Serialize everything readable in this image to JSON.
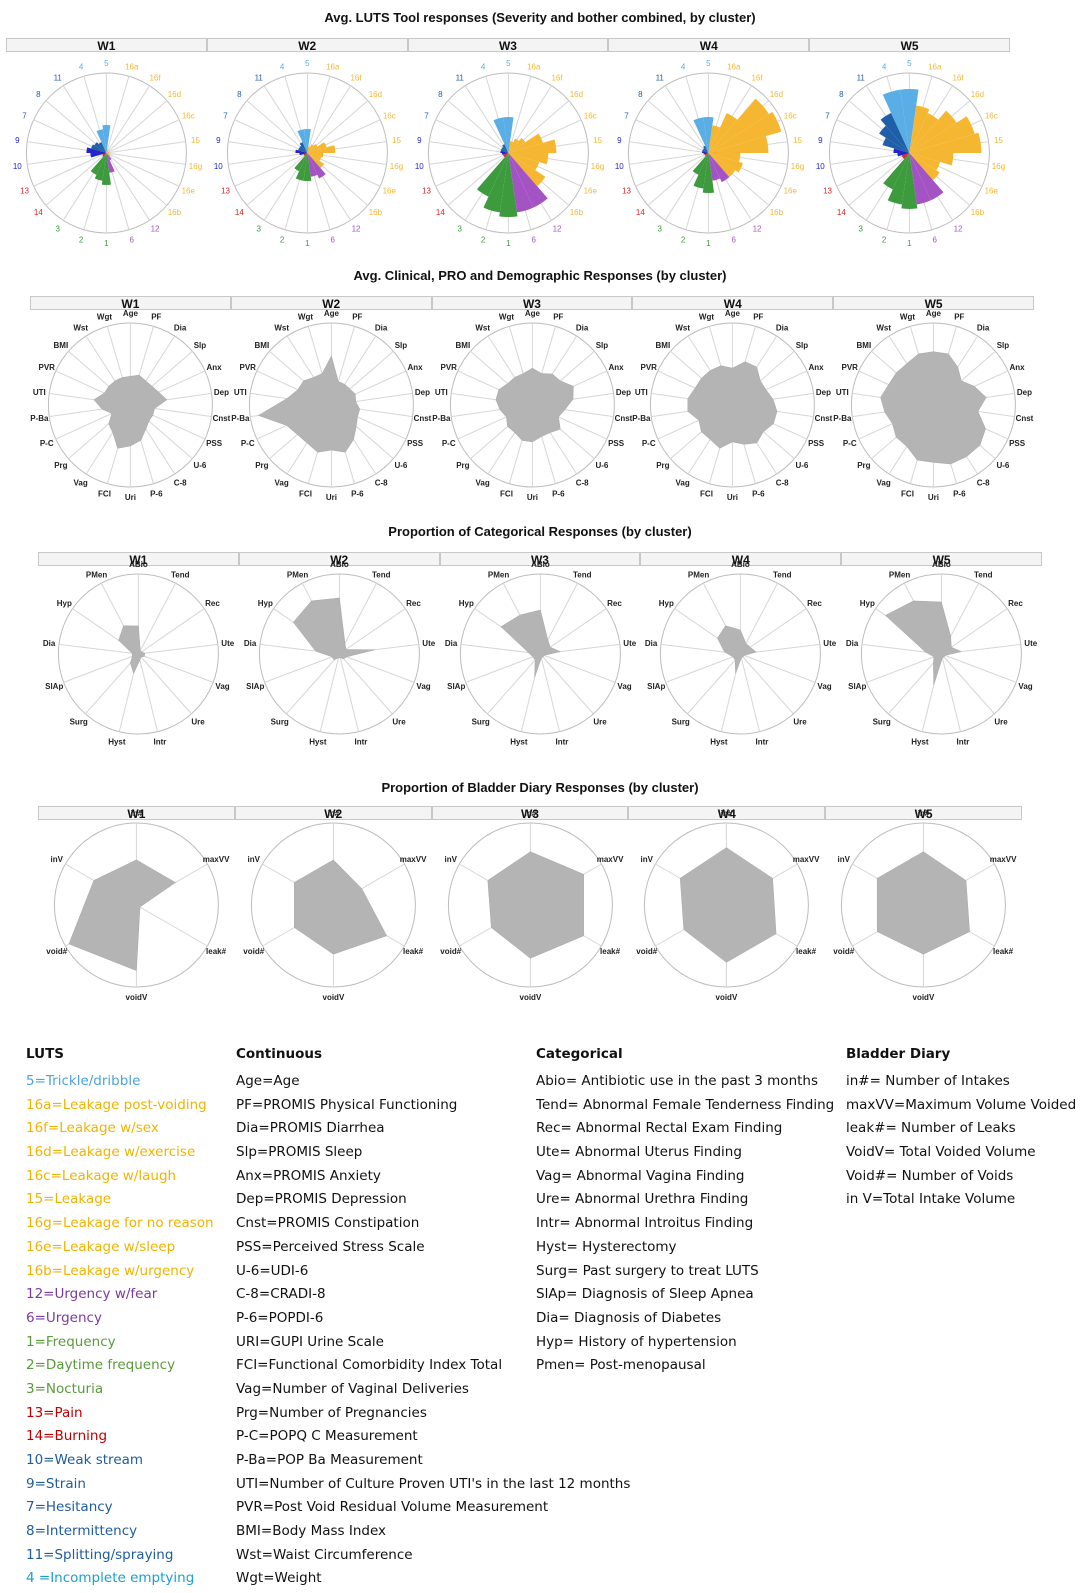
{
  "colors": {
    "light_blue": "#5aaee6",
    "orange": "#f5b731",
    "purple": "#a453c4",
    "green": "#3d9a3d",
    "red": "#e02121",
    "blue": "#2424cc",
    "dark_blue": "#1f5fa8",
    "gray_fill": "#b4b4b4",
    "legend_light_blue": "#4aa3df",
    "legend_orange": "#f0b400",
    "legend_purple": "#7b3aa0",
    "legend_green": "#5a9a3a",
    "legend_red": "#c00000",
    "legend_blue": "#1f5c99",
    "legend_cyan": "#1aa0d0"
  },
  "sections": {
    "luts_title": "Avg. LUTS Tool responses (Severity and bother combined, by cluster)",
    "clin_title": "Avg. Clinical, PRO and Demographic Responses (by cluster)",
    "cat_title": "Proportion of Categorical Responses (by cluster)",
    "diary_title": "Proportion of Bladder Diary Responses (by cluster)"
  },
  "clusters": [
    "W1",
    "W2",
    "W3",
    "W4",
    "W5"
  ],
  "chart_data": [
    {
      "type": "radar",
      "title": "Avg. LUTS Tool responses (Severity and bother combined, by cluster)",
      "axes": [
        "5",
        "16a",
        "16f",
        "16d",
        "16c",
        "15",
        "16g",
        "16e",
        "16b",
        "12",
        "6",
        "1",
        "2",
        "3",
        "14",
        "13",
        "10",
        "9",
        "7",
        "8",
        "11",
        "4"
      ],
      "axis_colors": [
        "light_blue",
        "orange",
        "orange",
        "orange",
        "orange",
        "orange",
        "orange",
        "orange",
        "orange",
        "purple",
        "purple",
        "green",
        "green",
        "green",
        "red",
        "red",
        "blue",
        "blue",
        "dark_blue",
        "dark_blue",
        "dark_blue",
        "light_blue"
      ],
      "rmax": 1,
      "series": [
        {
          "values": [
            0.35,
            0.05,
            0.03,
            0.03,
            0.03,
            0.03,
            0.03,
            0.04,
            0.06,
            0.1,
            0.25,
            0.4,
            0.35,
            0.3,
            0.06,
            0.05,
            0.2,
            0.25,
            0.2,
            0.18,
            0.15,
            0.3
          ]
        },
        {
          "values": [
            0.3,
            0.08,
            0.12,
            0.15,
            0.25,
            0.35,
            0.2,
            0.18,
            0.25,
            0.35,
            0.3,
            0.35,
            0.35,
            0.25,
            0.05,
            0.05,
            0.1,
            0.15,
            0.12,
            0.12,
            0.15,
            0.3
          ]
        },
        {
          "values": [
            0.45,
            0.15,
            0.2,
            0.25,
            0.45,
            0.6,
            0.5,
            0.4,
            0.55,
            0.75,
            0.75,
            0.8,
            0.75,
            0.6,
            0.07,
            0.07,
            0.08,
            0.1,
            0.1,
            0.1,
            0.12,
            0.45
          ]
        },
        {
          "values": [
            0.45,
            0.35,
            0.55,
            0.9,
            0.95,
            0.75,
            0.4,
            0.45,
            0.4,
            0.4,
            0.35,
            0.5,
            0.45,
            0.3,
            0.05,
            0.05,
            0.06,
            0.08,
            0.08,
            0.08,
            0.1,
            0.45
          ]
        },
        {
          "values": [
            0.8,
            0.6,
            0.55,
            0.7,
            0.85,
            0.9,
            0.55,
            0.4,
            0.45,
            0.65,
            0.65,
            0.7,
            0.65,
            0.5,
            0.1,
            0.1,
            0.15,
            0.2,
            0.35,
            0.45,
            0.55,
            0.8
          ]
        }
      ]
    },
    {
      "type": "radar",
      "title": "Avg. Clinical, PRO and Demographic Responses (by cluster)",
      "axes": [
        "Age",
        "PF",
        "Dia",
        "Slp",
        "Anx",
        "Dep",
        "Cnst",
        "PSS",
        "U-6",
        "C-8",
        "P-6",
        "Uri",
        "FCI",
        "Vag",
        "Prg",
        "P-C",
        "P-Ba",
        "UTI",
        "PVR",
        "BMI",
        "Wst",
        "Wgt"
      ],
      "rmax": 1,
      "series": [
        {
          "values": [
            0.35,
            0.38,
            0.35,
            0.35,
            0.38,
            0.45,
            0.3,
            0.3,
            0.3,
            0.35,
            0.45,
            0.5,
            0.55,
            0.4,
            0.35,
            0.25,
            0.35,
            0.45,
            0.35,
            0.35,
            0.35,
            0.35
          ]
        },
        {
          "values": [
            0.6,
            0.3,
            0.3,
            0.3,
            0.32,
            0.3,
            0.35,
            0.35,
            0.4,
            0.5,
            0.6,
            0.55,
            0.6,
            0.55,
            0.55,
            0.6,
            0.9,
            0.55,
            0.45,
            0.45,
            0.4,
            0.4
          ]
        },
        {
          "values": [
            0.45,
            0.4,
            0.45,
            0.45,
            0.55,
            0.5,
            0.4,
            0.35,
            0.45,
            0.4,
            0.4,
            0.45,
            0.45,
            0.4,
            0.4,
            0.35,
            0.4,
            0.45,
            0.45,
            0.4,
            0.4,
            0.4
          ]
        },
        {
          "values": [
            0.45,
            0.55,
            0.55,
            0.45,
            0.45,
            0.5,
            0.55,
            0.55,
            0.5,
            0.55,
            0.5,
            0.45,
            0.55,
            0.5,
            0.5,
            0.45,
            0.55,
            0.55,
            0.5,
            0.5,
            0.5,
            0.5
          ]
        },
        {
          "values": [
            0.65,
            0.65,
            0.55,
            0.45,
            0.55,
            0.65,
            0.55,
            0.7,
            0.75,
            0.75,
            0.75,
            0.7,
            0.7,
            0.6,
            0.6,
            0.55,
            0.6,
            0.65,
            0.6,
            0.6,
            0.6,
            0.65
          ]
        }
      ]
    },
    {
      "type": "radar",
      "title": "Proportion of Categorical Responses (by cluster)",
      "axes": [
        "ABio",
        "Tend",
        "Rec",
        "Ute",
        "Vag",
        "Ure",
        "Intr",
        "Hyst",
        "Surg",
        "SlAp",
        "Dia",
        "Hyp",
        "PMen"
      ],
      "rmax": 1,
      "series": [
        {
          "values": [
            0.35,
            0.05,
            0.05,
            0.08,
            0.08,
            0.05,
            0.08,
            0.25,
            0.15,
            0.08,
            0.08,
            0.3,
            0.4
          ]
        },
        {
          "values": [
            0.7,
            0.15,
            0.1,
            0.45,
            0.1,
            0.08,
            0.05,
            0.05,
            0.1,
            0.1,
            0.3,
            0.7,
            0.75
          ]
        },
        {
          "values": [
            0.55,
            0.2,
            0.15,
            0.25,
            0.05,
            0.05,
            0.05,
            0.3,
            0.1,
            0.1,
            0.15,
            0.6,
            0.55
          ]
        },
        {
          "values": [
            0.3,
            0.15,
            0.15,
            0.2,
            0.05,
            0.05,
            0.05,
            0.25,
            0.1,
            0.1,
            0.2,
            0.35,
            0.4
          ]
        },
        {
          "values": [
            0.65,
            0.25,
            0.15,
            0.25,
            0.05,
            0.05,
            0.05,
            0.4,
            0.15,
            0.1,
            0.2,
            0.85,
            0.75
          ]
        }
      ]
    },
    {
      "type": "radar",
      "title": "Proportion of Bladder Diary Responses (by cluster)",
      "axes": [
        "in#",
        "maxVV",
        "leak#",
        "voidV",
        "void#",
        "inV"
      ],
      "rmax": 1,
      "series": [
        {
          "values": [
            0.55,
            0.55,
            0.05,
            0.8,
            0.95,
            0.6
          ]
        },
        {
          "values": [
            0.55,
            0.4,
            0.75,
            0.6,
            0.55,
            0.55
          ]
        },
        {
          "values": [
            0.65,
            0.75,
            0.75,
            0.65,
            0.55,
            0.6
          ]
        },
        {
          "values": [
            0.7,
            0.65,
            0.7,
            0.7,
            0.6,
            0.65
          ]
        },
        {
          "values": [
            0.65,
            0.6,
            0.65,
            0.6,
            0.65,
            0.65
          ]
        }
      ]
    }
  ],
  "legend": {
    "luts": {
      "heading": "LUTS",
      "items": [
        {
          "text": "5=Trickle/dribble",
          "color": "#4aa3df"
        },
        {
          "text": "16a=Leakage post-voiding",
          "color": "#f0b400"
        },
        {
          "text": "16f=Leakage w/sex",
          "color": "#f0b400"
        },
        {
          "text": "16d=Leakage w/exercise",
          "color": "#f0b400"
        },
        {
          "text": "16c=Leakage w/laugh",
          "color": "#f0b400"
        },
        {
          "text": "15=Leakage",
          "color": "#f0b400"
        },
        {
          "text": "16g=Leakage for no reason",
          "color": "#f0b400"
        },
        {
          "text": "16e=Leakage w/sleep",
          "color": "#f0b400"
        },
        {
          "text": "16b=Leakage w/urgency",
          "color": "#f0b400"
        },
        {
          "text": "12=Urgency w/fear",
          "color": "#7b3aa0"
        },
        {
          "text": "6=Urgency",
          "color": "#7b3aa0"
        },
        {
          "text": "1=Frequency",
          "color": "#5a9a3a"
        },
        {
          "text": "2=Daytime frequency",
          "color": "#5a9a3a"
        },
        {
          "text": "3=Nocturia",
          "color": "#5a9a3a"
        },
        {
          "text": "13=Pain",
          "color": "#c00000"
        },
        {
          "text": "14=Burning",
          "color": "#c00000"
        },
        {
          "text": "10=Weak stream",
          "color": "#1f5c99"
        },
        {
          "text": "9=Strain",
          "color": "#1f5c99"
        },
        {
          "text": "7=Hesitancy",
          "color": "#1f5c99"
        },
        {
          "text": "8=Intermittency",
          "color": "#1f5c99"
        },
        {
          "text": "11=Splitting/spraying",
          "color": "#1f5c99"
        },
        {
          "text": "4 =Incomplete emptying",
          "color": "#1aa0d0"
        }
      ]
    },
    "continuous": {
      "heading": "Continuous",
      "items": [
        "Age=Age",
        "PF=PROMIS Physical Functioning",
        "Dia=PROMIS Diarrhea",
        "Slp=PROMIS Sleep",
        "Anx=PROMIS Anxiety",
        "Dep=PROMIS Depression",
        "Cnst=PROMIS Constipation",
        "PSS=Perceived Stress Scale",
        "U-6=UDI-6",
        "C-8=CRADI-8",
        "P-6=POPDI-6",
        "URI=GUPI Urine Scale",
        "FCI=Functional Comorbidity Index Total",
        "Vag=Number of Vaginal Deliveries",
        "Prg=Number of Pregnancies",
        "P-C=POPQ C Measurement",
        "P-Ba=POP Ba Measurement",
        "UTI=Number of Culture Proven UTI's in the last 12 months",
        "PVR=Post Void Residual Volume Measurement",
        "BMI=Body Mass Index",
        "Wst=Waist Circumference",
        "Wgt=Weight"
      ]
    },
    "categorical": {
      "heading": "Categorical",
      "items": [
        "Abio= Antibiotic use in the past 3 months",
        "Tend= Abnormal Female Tenderness Finding",
        "Rec= Abnormal Rectal Exam Finding",
        "Ute= Abnormal Uterus Finding",
        "Vag= Abnormal Vagina Finding",
        "Ure= Abnormal Urethra Finding",
        "Intr= Abnormal Introitus Finding",
        "Hyst= Hysterectomy",
        "Surg= Past surgery to treat LUTS",
        "SlAp= Diagnosis of Sleep Apnea",
        "Dia= Diagnosis of Diabetes",
        "Hyp= History of hypertension",
        "Pmen= Post-menopausal"
      ]
    },
    "diary": {
      "heading": "Bladder Diary",
      "items": [
        "in#= Number of Intakes",
        "maxVV=Maximum Volume Voided",
        "leak#= Number of Leaks",
        "VoidV= Total Voided Volume",
        "Void#= Number of Voids",
        "in V=Total Intake Volume"
      ]
    }
  }
}
